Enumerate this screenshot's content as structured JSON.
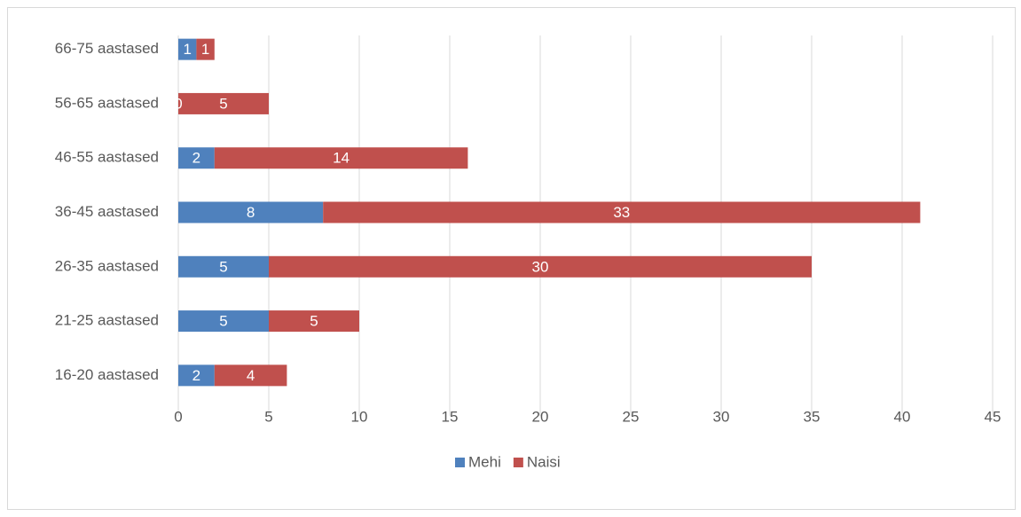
{
  "chart_data": {
    "type": "bar",
    "orientation": "horizontal",
    "stacked": true,
    "categories": [
      "16-20 aastased",
      "21-25 aastased",
      "26-35 aastased",
      "36-45 aastased",
      "46-55 aastased",
      "56-65 aastased",
      "66-75 aastased"
    ],
    "series": [
      {
        "name": "Mehi",
        "color": "#4f81bd",
        "values": [
          2,
          5,
          5,
          8,
          2,
          0,
          1
        ]
      },
      {
        "name": "Naisi",
        "color": "#c0504d",
        "values": [
          4,
          5,
          30,
          33,
          14,
          5,
          1
        ]
      }
    ],
    "xlim": [
      0,
      45
    ],
    "xticks": [
      0,
      5,
      10,
      15,
      20,
      25,
      30,
      35,
      40,
      45
    ],
    "grid": true,
    "legend": "bottom"
  }
}
